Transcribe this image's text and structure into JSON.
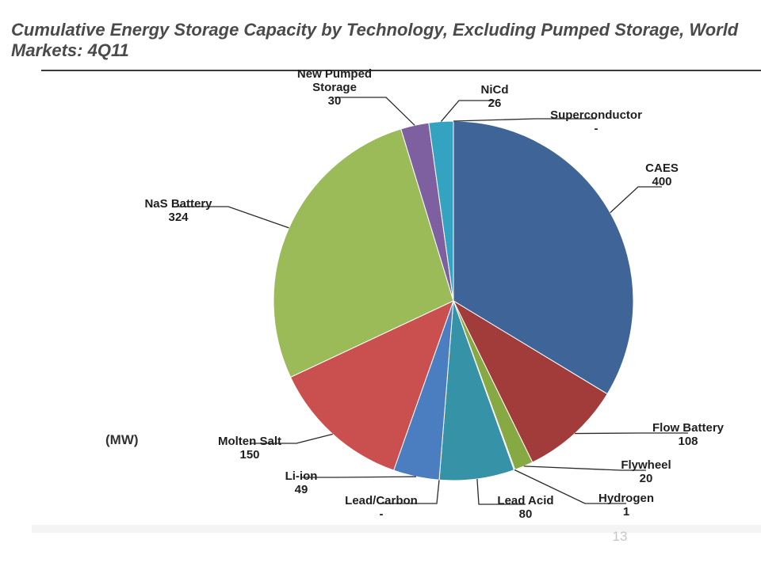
{
  "slide": {
    "title": "Cumulative Energy Storage Capacity by Technology,  Excluding Pumped Storage, World Markets:  4Q11",
    "unit_label": "(MW)",
    "page_number": "13"
  },
  "chart_data": {
    "type": "pie",
    "title": "Cumulative Energy Storage Capacity by Technology,  Excluding Pumped Storage, World Markets:  4Q11",
    "unit": "(MW)",
    "slices": [
      {
        "name": "CAES",
        "value": 400,
        "display": "400",
        "color": "#3f6598"
      },
      {
        "name": "Flow Battery",
        "value": 108,
        "display": "108",
        "color": "#a23c3a"
      },
      {
        "name": "Flywheel",
        "value": 20,
        "display": "20",
        "color": "#86a944"
      },
      {
        "name": "Hydrogen",
        "value": 1,
        "display": "1",
        "color": "#6b4f8e"
      },
      {
        "name": "Lead Acid",
        "value": 80,
        "display": "80",
        "color": "#3592a7"
      },
      {
        "name": "Lead/Carbon",
        "value": 0,
        "display": "-",
        "color": "#dd8a3a"
      },
      {
        "name": "Li-ion",
        "value": 49,
        "display": "49",
        "color": "#4a7ec1"
      },
      {
        "name": "Molten Salt",
        "value": 150,
        "display": "150",
        "color": "#c9504e"
      },
      {
        "name": "NaS Battery",
        "value": 324,
        "display": "324",
        "color": "#9bbb59"
      },
      {
        "name": "New Pumped Storage",
        "value": 30,
        "display": "30",
        "color": "#7e5fa0"
      },
      {
        "name": "NiCd",
        "value": 26,
        "display": "26",
        "color": "#33a3c1"
      },
      {
        "name": "Superconductor",
        "value": 0,
        "display": "-",
        "color": "#f79646"
      }
    ]
  }
}
